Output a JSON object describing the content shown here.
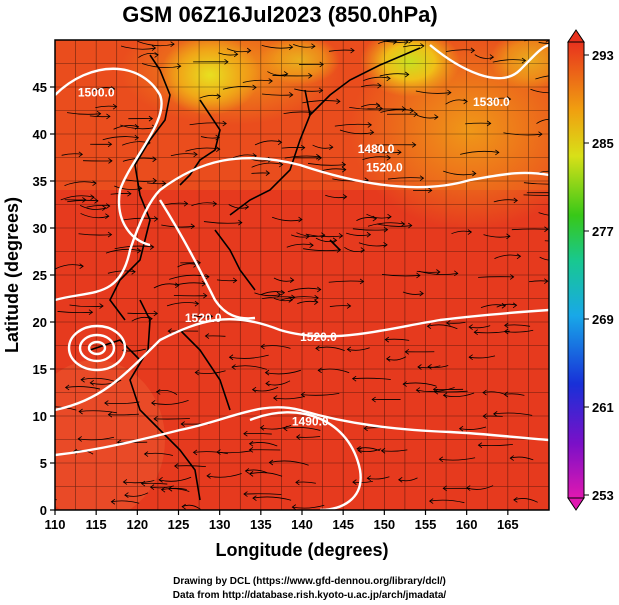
{
  "title": "GSM 06Z16Jul2023 (850.0hPa)",
  "credits": {
    "line1": "Drawing by DCL (https://www.gfd-dennou.org/library/dcl/)",
    "line2": "Data from http://database.rish.kyoto-u.ac.jp/arch/jmadata/"
  },
  "chart_data": {
    "type": "heatmap",
    "xlabel": "Longitude (degrees)",
    "ylabel": "Latitude  (degrees)",
    "xlim": [
      110,
      170
    ],
    "ylim": [
      0,
      50
    ],
    "x_ticks": [
      "110",
      "115",
      "120",
      "125",
      "130",
      "135",
      "140",
      "145",
      "150",
      "155",
      "160",
      "165"
    ],
    "y_ticks": [
      "0",
      "5",
      "10",
      "15",
      "20",
      "25",
      "30",
      "35",
      "40",
      "45"
    ],
    "colorbar": {
      "ticks": [
        "293",
        "285",
        "277",
        "269",
        "261",
        "253"
      ],
      "range": [
        253,
        293
      ]
    },
    "contour_labels": [
      {
        "text": "1480.0",
        "lon": 149,
        "lat": 38
      },
      {
        "text": "1520.0",
        "lon": 150,
        "lat": 36
      },
      {
        "text": "1520.0",
        "lon": 142,
        "lat": 18
      },
      {
        "text": "1520.0",
        "lon": 128,
        "lat": 20
      },
      {
        "text": "1490.0",
        "lon": 141,
        "lat": 9
      },
      {
        "text": "1530.0",
        "lon": 163,
        "lat": 43
      },
      {
        "text": "1500.0",
        "lon": 115,
        "lat": 44
      }
    ],
    "colors": {
      "warm": "#e8321e",
      "orange": "#f07a10",
      "yellow": "#f0d218",
      "green": "#38c818",
      "cyan": "#18b8e8",
      "blue": "#1830d8",
      "magenta": "#e018b0"
    }
  }
}
